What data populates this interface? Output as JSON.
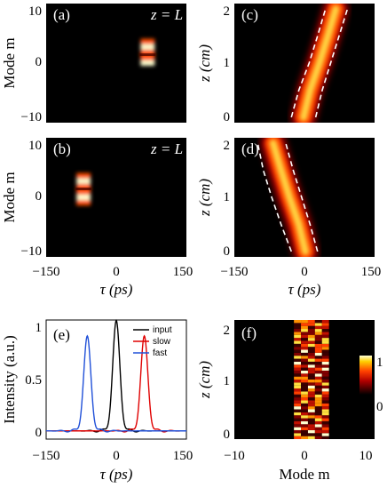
{
  "chart_data": [
    {
      "id": "a",
      "type": "heatmap",
      "panel_label": "(a)",
      "annotation": "z = L",
      "ylabel": "Mode m",
      "xlabel": "",
      "xlim": [
        -150,
        150
      ],
      "ylim": [
        -12,
        10
      ],
      "yticks": [
        "10",
        "0",
        "−10"
      ],
      "xticks": [],
      "colormap": "hot",
      "features": [
        {
          "tau": 67,
          "modes": [
            -1,
            0,
            1,
            2,
            3
          ],
          "peak_modes": [
            2,
            -1
          ]
        }
      ]
    },
    {
      "id": "b",
      "type": "heatmap",
      "panel_label": "(b)",
      "annotation": "z = L",
      "ylabel": "Mode m",
      "xlabel": "τ (ps)",
      "xlim": [
        -150,
        150
      ],
      "ylim": [
        -12,
        10
      ],
      "yticks": [
        "10",
        "0",
        "−10"
      ],
      "xticks": [
        "−150",
        "0",
        "150"
      ],
      "colormap": "hot",
      "features": [
        {
          "tau": -70,
          "modes": [
            -2,
            -1,
            0,
            1,
            2,
            3
          ],
          "peak_modes": [
            2,
            -1
          ]
        }
      ]
    },
    {
      "id": "c",
      "type": "heatmap",
      "panel_label": "(c)",
      "ylabel": "z (cm)",
      "xlabel": "",
      "xlim": [
        -150,
        150
      ],
      "ylim": [
        -0.1,
        2.1
      ],
      "yticks": [
        "2",
        "1",
        "0"
      ],
      "xticks": [],
      "colormap": "hot",
      "trace": {
        "z": [
          0,
          0.5,
          1,
          1.5,
          2
        ],
        "tau": [
          -2,
          12,
          32,
          50,
          67
        ]
      },
      "dashed_envelope": {
        "z": [
          0,
          0.5,
          1,
          1.5,
          2
        ],
        "left": [
          -28,
          -12,
          10,
          28,
          45
        ],
        "right": [
          24,
          38,
          56,
          74,
          92
        ]
      }
    },
    {
      "id": "d",
      "type": "heatmap",
      "panel_label": "(d)",
      "ylabel": "z (cm)",
      "xlabel": "τ (ps)",
      "xlim": [
        -150,
        150
      ],
      "ylim": [
        -0.1,
        2.1
      ],
      "yticks": [
        "2",
        "1",
        "0"
      ],
      "xticks": [
        "−150",
        "0",
        "150"
      ],
      "colormap": "hot",
      "trace": {
        "z": [
          0,
          0.5,
          1,
          1.5,
          2
        ],
        "tau": [
          2,
          -12,
          -32,
          -50,
          -67
        ]
      },
      "dashed_envelope": {
        "z": [
          0,
          0.5,
          1,
          1.5,
          2
        ],
        "left": [
          -28,
          -50,
          -70,
          -88,
          -100
        ],
        "right": [
          28,
          12,
          -6,
          -24,
          -40
        ]
      }
    },
    {
      "id": "e",
      "type": "line",
      "panel_label": "(e)",
      "ylabel": "Intensity (a.u.)",
      "xlabel": "τ (ps)",
      "xlim": [
        -150,
        150
      ],
      "ylim": [
        -0.08,
        1.08
      ],
      "yticks": [
        "1",
        "0.5",
        "0"
      ],
      "xticks": [
        "−150",
        "0",
        "150"
      ],
      "series": [
        {
          "name": "input",
          "color": "#000000",
          "center": 0,
          "peak": 1.05,
          "width": 11
        },
        {
          "name": "slow",
          "color": "#e00000",
          "center": 60,
          "peak": 0.9,
          "width": 11
        },
        {
          "name": "fast",
          "color": "#2050d8",
          "center": -62,
          "peak": 0.9,
          "width": 11
        }
      ]
    },
    {
      "id": "f",
      "type": "heatmap",
      "panel_label": "(f)",
      "ylabel": "z (cm)",
      "xlabel": "Mode m",
      "xlim": [
        -10,
        10
      ],
      "ylim": [
        -0.1,
        2.1
      ],
      "yticks": [
        "2",
        "1",
        "0"
      ],
      "xticks": [
        "−10",
        "0",
        "10"
      ],
      "colormap": "hot",
      "active_modes": [
        -1,
        0,
        1,
        2,
        3
      ],
      "colorbar": {
        "min": 0,
        "max": 1,
        "labels": [
          "1",
          "0"
        ]
      }
    }
  ]
}
